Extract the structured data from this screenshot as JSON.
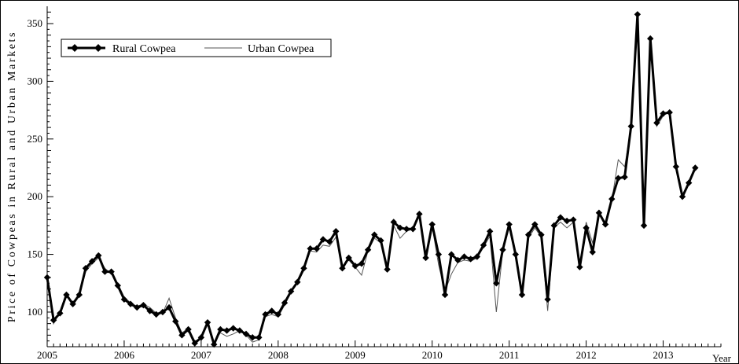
{
  "chart_data": {
    "type": "line",
    "title": "",
    "xlabel": "Year",
    "ylabel": "Price of Cowpeas in Rural and Urban Markets",
    "xlim": [
      2005,
      2013.75
    ],
    "ylim": [
      70,
      365
    ],
    "x_ticks": [
      2005,
      2006,
      2007,
      2008,
      2009,
      2010,
      2011,
      2012,
      2013
    ],
    "x_tick_labels": [
      "2005",
      "2006",
      "2007",
      "2008",
      "2009",
      "2010",
      "2011",
      "2012",
      "2013"
    ],
    "y_ticks": [
      100,
      150,
      200,
      250,
      300,
      350
    ],
    "y_tick_labels": [
      "100",
      "150",
      "200",
      "250",
      "300",
      "350"
    ],
    "grid": false,
    "legend_position": "top-left",
    "x_start": 2005.0,
    "x_step_months": 1,
    "series": [
      {
        "name": "Rural Cowpea",
        "style": "thick line with diamond markers",
        "color": "#000000",
        "values": [
          130,
          93,
          99,
          115,
          107,
          115,
          138,
          144,
          149,
          135,
          135,
          123,
          111,
          107,
          104,
          106,
          101,
          98,
          100,
          104,
          92,
          80,
          85,
          73,
          78,
          91,
          72,
          85,
          84,
          86,
          84,
          81,
          78,
          78,
          98,
          101,
          98,
          108,
          118,
          126,
          138,
          155,
          155,
          163,
          161,
          170,
          138,
          147,
          140,
          142,
          154,
          167,
          162,
          137,
          178,
          173,
          172,
          172,
          185,
          147,
          176,
          150,
          115,
          150,
          145,
          148,
          146,
          148,
          158,
          170,
          125,
          154,
          176,
          150,
          115,
          167,
          176,
          167,
          111,
          175,
          182,
          179,
          180,
          139,
          173,
          152,
          186,
          176,
          198,
          216,
          217,
          261,
          358,
          175,
          337,
          264,
          272,
          273,
          226,
          200,
          212,
          225
        ]
      },
      {
        "name": "Urban Cowpea",
        "style": "thin line",
        "color": "#555555",
        "values": [
          130,
          90,
          100,
          113,
          109,
          114,
          135,
          142,
          147,
          138,
          133,
          125,
          113,
          108,
          105,
          107,
          104,
          99,
          99,
          112,
          95,
          82,
          86,
          75,
          77,
          90,
          74,
          82,
          79,
          81,
          84,
          80,
          74,
          76,
          96,
          98,
          96,
          106,
          117,
          125,
          136,
          153,
          152,
          158,
          157,
          165,
          140,
          145,
          139,
          132,
          153,
          164,
          160,
          140,
          175,
          164,
          170,
          172,
          183,
          148,
          174,
          141,
          118,
          133,
          143,
          145,
          144,
          147,
          156,
          166,
          100,
          153,
          173,
          148,
          118,
          164,
          173,
          165,
          101,
          173,
          178,
          173,
          178,
          141,
          178,
          160,
          184,
          178,
          197,
          232,
          226,
          260,
          357,
          178,
          335,
          261,
          270,
          274,
          226,
          200,
          214,
          225
        ]
      }
    ]
  }
}
